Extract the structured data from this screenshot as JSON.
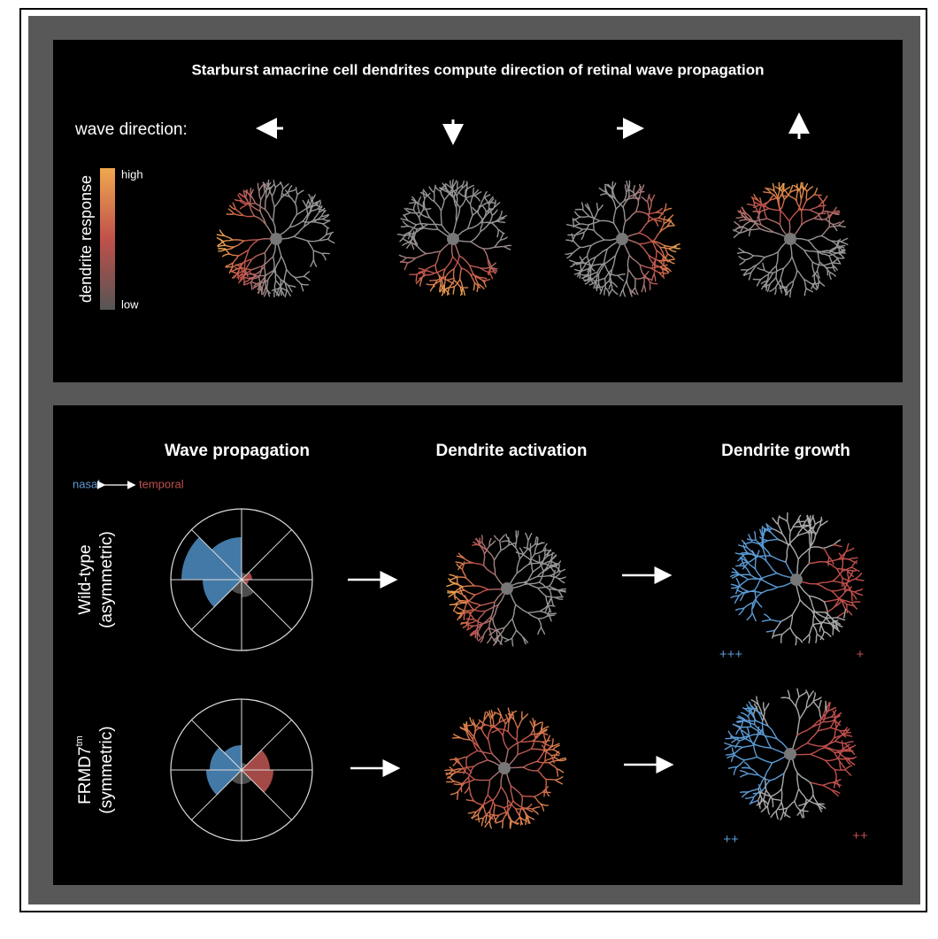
{
  "title": "Starburst amacrine cell dendrites compute direction of retinal wave propagation",
  "top_panel": {
    "wave_direction_label": "wave direction:",
    "colorbar": {
      "label": "dendrite response",
      "high": "high",
      "low": "low"
    }
  },
  "bottom_panel": {
    "headers": [
      "Wave propagation",
      "Dendrite activation",
      "Dendrite growth"
    ],
    "axis_legend": {
      "nasal": "nasal",
      "temporal": "temporal"
    },
    "rows": [
      {
        "label": "Wild-type",
        "sublabel": "(asymmetric)",
        "rose": {
          "values": [
            0.1,
            0.25,
            0.2,
            0.55,
            0.85,
            0.6,
            0.1,
            0.15
          ],
          "colors": [
            "#b5514e",
            "#555555",
            "#555555",
            "#4a86b8",
            "#4a86b8",
            "#4a86b8",
            "#555555",
            "#b5514e"
          ]
        },
        "growth_marks": {
          "nasal": "+++",
          "temporal": "+"
        }
      },
      {
        "label": "FRMD7",
        "label_sup": "tm",
        "sublabel": "(symmetric)",
        "rose": {
          "values": [
            0.45,
            0.2,
            0.2,
            0.5,
            0.45,
            0.35,
            0.1,
            0.4
          ],
          "colors": [
            "#b5514e",
            "#555555",
            "#555555",
            "#4a86b8",
            "#4a86b8",
            "#4a86b8",
            "#555555",
            "#b5514e"
          ]
        },
        "growth_marks": {
          "nasal": "++",
          "temporal": "++"
        }
      }
    ]
  }
}
